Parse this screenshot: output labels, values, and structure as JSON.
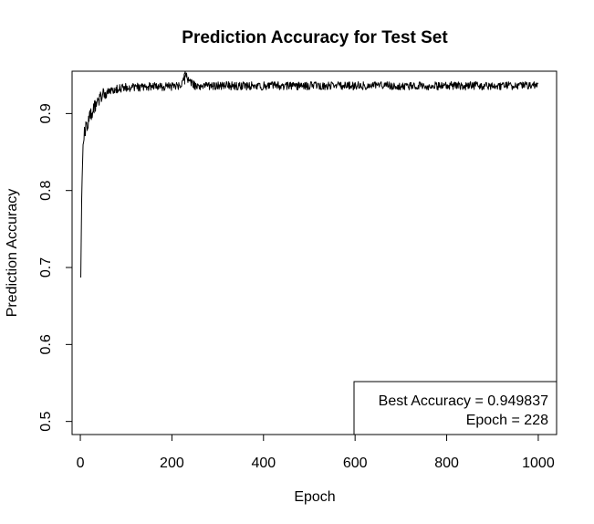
{
  "chart_data": {
    "type": "line",
    "title": "Prediction Accuracy for Test Set",
    "xlabel": "Epoch",
    "ylabel": "Prediction Accuracy",
    "xlim": [
      -18,
      1040
    ],
    "ylim": [
      0.483,
      0.955
    ],
    "x_ticks": [
      0,
      200,
      400,
      600,
      800,
      1000
    ],
    "y_ticks": [
      0.5,
      0.6,
      0.7,
      0.8,
      0.9
    ],
    "y_tick_labels": [
      "0.5",
      "0.6",
      "0.7",
      "0.8",
      "0.9"
    ],
    "grid": false,
    "series": [
      {
        "x": [
          1,
          3,
          5,
          7,
          10,
          14,
          18,
          22,
          26,
          30,
          35,
          40,
          45,
          50,
          55,
          60,
          65,
          70,
          80,
          90,
          100,
          120,
          140,
          160,
          180,
          200,
          220,
          228,
          250,
          280,
          300,
          320,
          340,
          360,
          380,
          400,
          420,
          440,
          460,
          480,
          500,
          520,
          540,
          560,
          580,
          600,
          620,
          640,
          660,
          680,
          700,
          720,
          740,
          760,
          780,
          800,
          820,
          840,
          860,
          880,
          900,
          920,
          940,
          960,
          975,
          990,
          1000
        ],
        "y": [
          0.687,
          0.79,
          0.843,
          0.868,
          0.877,
          0.884,
          0.891,
          0.898,
          0.903,
          0.908,
          0.913,
          0.918,
          0.921,
          0.924,
          0.927,
          0.929,
          0.93,
          0.931,
          0.932,
          0.933,
          0.934,
          0.934,
          0.935,
          0.935,
          0.935,
          0.935,
          0.936,
          0.9498,
          0.936,
          0.936,
          0.936,
          0.936,
          0.936,
          0.936,
          0.936,
          0.936,
          0.936,
          0.936,
          0.936,
          0.936,
          0.936,
          0.936,
          0.936,
          0.936,
          0.936,
          0.936,
          0.936,
          0.936,
          0.936,
          0.936,
          0.936,
          0.936,
          0.936,
          0.936,
          0.936,
          0.936,
          0.936,
          0.936,
          0.936,
          0.936,
          0.936,
          0.936,
          0.936,
          0.936,
          0.936,
          0.936,
          0.934
        ]
      }
    ],
    "legend": {
      "position": "bottom-right",
      "lines": [
        "Best Accuracy = 0.949837",
        "Epoch = 228"
      ]
    }
  }
}
